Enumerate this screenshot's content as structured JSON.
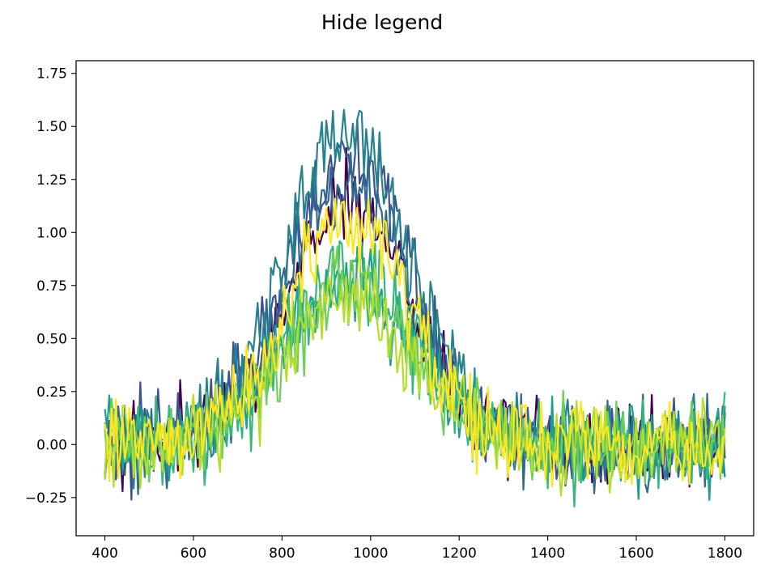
{
  "figure": {
    "title": "Hide legend"
  },
  "colors": {
    "axes": "#000000",
    "background": "#ffffff",
    "series_palette": [
      "#440154",
      "#3b528b",
      "#31688e",
      "#26828e",
      "#1f9e89",
      "#35b779",
      "#6ece58",
      "#b5de2b",
      "#fde725"
    ]
  },
  "chart_data": {
    "type": "line",
    "title": "Hide legend",
    "xlabel": "",
    "ylabel": "",
    "xlim": [
      335,
      1865
    ],
    "ylim": [
      -0.43,
      1.81
    ],
    "grid": false,
    "legend": "none",
    "x_ticks": [
      400,
      600,
      800,
      1000,
      1200,
      1400,
      1600,
      1800
    ],
    "x_tick_labels": [
      "400",
      "600",
      "800",
      "1000",
      "1200",
      "1400",
      "1600",
      "1800"
    ],
    "y_ticks": [
      -0.25,
      0.0,
      0.25,
      0.5,
      0.75,
      1.0,
      1.25,
      1.5,
      1.75
    ],
    "y_tick_labels": [
      "−0.25",
      "0.00",
      "0.25",
      "0.50",
      "0.75",
      "1.00",
      "1.25",
      "1.50",
      "1.75"
    ],
    "x_range": [
      400,
      1800
    ],
    "x_step": 5,
    "peak_center": 950,
    "peak_width": 140,
    "noise_amplitude": 0.1,
    "series": [
      {
        "color": "#440154",
        "peak": 1.15
      },
      {
        "color": "#3b528b",
        "peak": 1.38
      },
      {
        "color": "#31688e",
        "peak": 1.22
      },
      {
        "color": "#26828e",
        "peak": 1.48
      },
      {
        "color": "#1f9e89",
        "peak": 0.78
      },
      {
        "color": "#35b779",
        "peak": 0.82
      },
      {
        "color": "#6ece58",
        "peak": 0.72
      },
      {
        "color": "#b5de2b",
        "peak": 0.7
      },
      {
        "color": "#fde725",
        "peak": 1.05
      }
    ]
  }
}
